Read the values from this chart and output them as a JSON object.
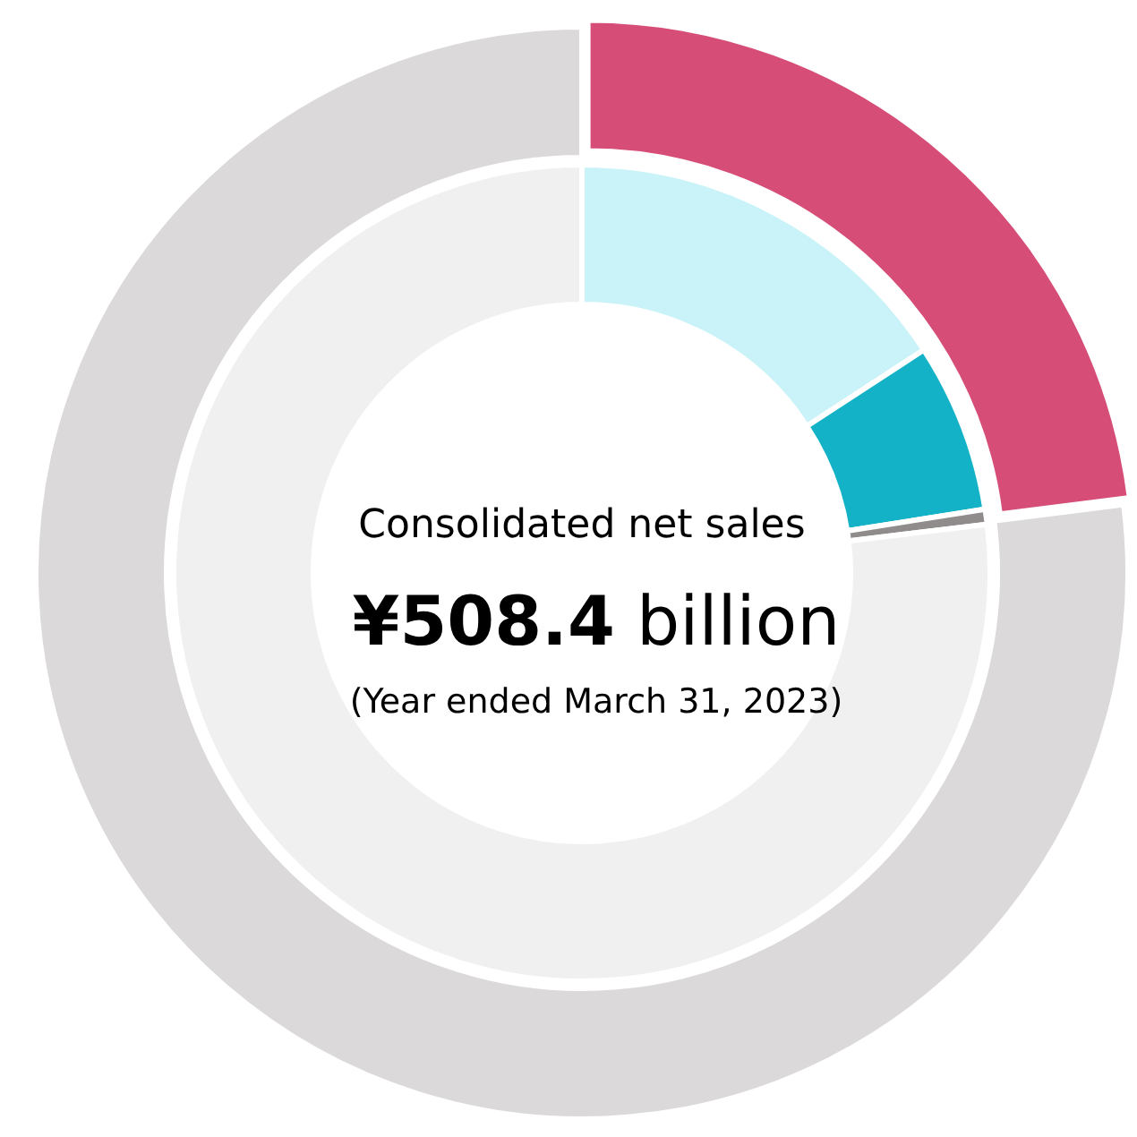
{
  "chart_data": [
    {
      "type": "donut",
      "title": "Consolidated net sales",
      "subtitle": "¥508.4 billion",
      "annotations": [
        "(Year ended March 31, 2023)"
      ],
      "categories": [
        null,
        null
      ],
      "values": [
        23,
        77
      ],
      "colors": [
        "#d64d77",
        "#dbd9da"
      ]
    },
    {
      "type": "donut",
      "categories": [
        null,
        null,
        null,
        null
      ],
      "values": [
        15.8,
        6.7,
        0.6,
        76.9
      ],
      "colors": [
        "#c9f3f8",
        "#13b2c7",
        "#8f8c8b",
        "#f0f0f0"
      ]
    }
  ]
}
